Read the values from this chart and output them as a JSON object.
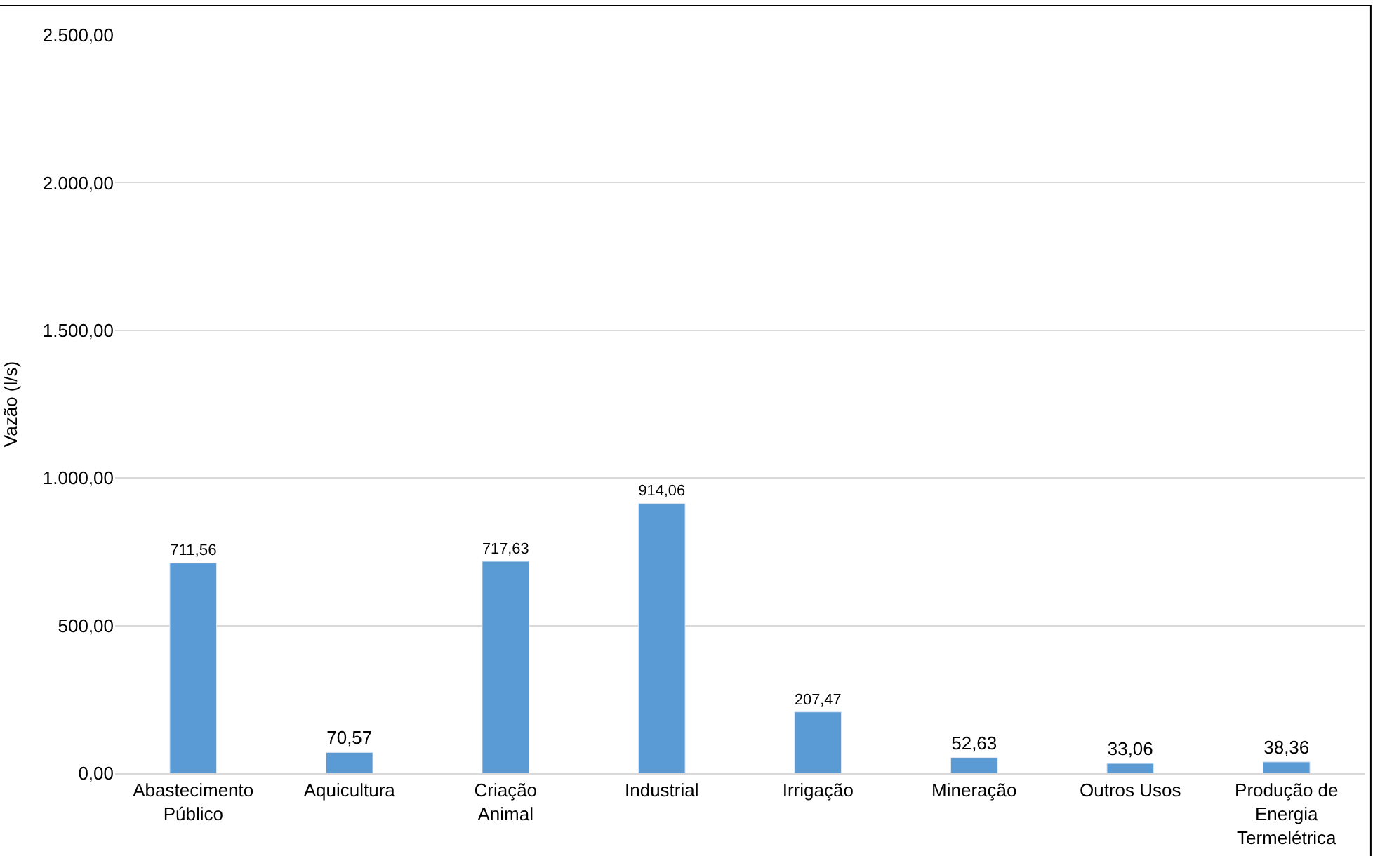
{
  "chart_data": {
    "type": "bar",
    "ylabel": "Vazão (l/s)",
    "categories": [
      "Abastecimento Público",
      "Aquicultura",
      "Criação Animal",
      "Industrial",
      "Irrigação",
      "Mineração",
      "Outros Usos",
      "Produção de Energia Termelétrica"
    ],
    "values": [
      711.56,
      70.57,
      717.63,
      914.06,
      207.47,
      52.63,
      33.06,
      38.36
    ],
    "value_labels": [
      "711,56",
      "70,57",
      "717,63",
      "914,06",
      "207,47",
      "52,63",
      "33,06",
      "38,36"
    ],
    "color": "#5b9bd5",
    "ylim": [
      0,
      2500
    ],
    "yticks": [
      {
        "value": 0,
        "label": "0,00"
      },
      {
        "value": 500,
        "label": "500,00"
      },
      {
        "value": 1000,
        "label": "1.000,00"
      },
      {
        "value": 1500,
        "label": "1.500,00"
      },
      {
        "value": 2000,
        "label": "2.000,00"
      },
      {
        "value": 2500,
        "label": "2.500,00"
      }
    ],
    "grid": "y"
  }
}
